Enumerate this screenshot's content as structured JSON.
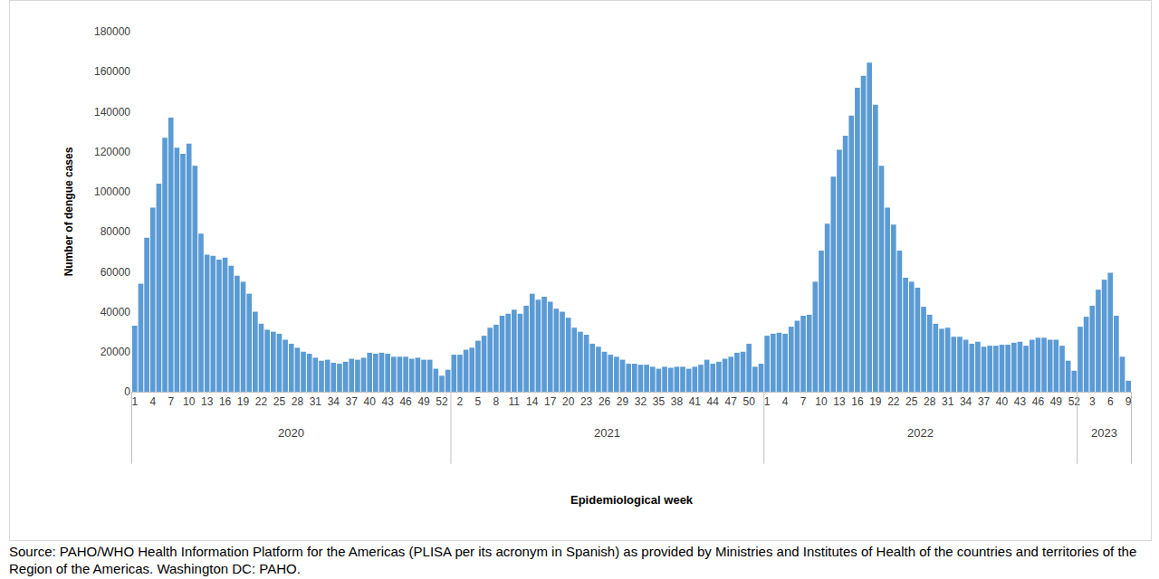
{
  "chart_data": {
    "type": "bar",
    "x_label": "Epidemiological week",
    "y_label": "Number of dengue cases",
    "note": "Source: PAHO/WHO Health Information Platform for the Americas (PLISA per its acronym in Spanish) as provided by Ministries and Institutes of Health of the countries and territories of the Region of the Americas. Washington DC: PAHO.",
    "color": "#5b9bd5",
    "grid": false,
    "ylim": [
      0,
      180000
    ],
    "yticks": [
      0,
      20000,
      40000,
      60000,
      80000,
      100000,
      120000,
      140000,
      160000,
      180000
    ],
    "groups": [
      {
        "label": "2020",
        "count": 53
      },
      {
        "label": "2021",
        "count": 52
      },
      {
        "label": "2022",
        "count": 52
      },
      {
        "label": "2023",
        "count": 9
      }
    ],
    "categories": [
      "1",
      null,
      null,
      "4",
      null,
      null,
      "7",
      null,
      null,
      "10",
      null,
      null,
      "13",
      null,
      null,
      "16",
      null,
      null,
      "19",
      null,
      null,
      "22",
      null,
      null,
      "25",
      null,
      null,
      "28",
      null,
      null,
      "31",
      null,
      null,
      "34",
      null,
      null,
      "37",
      null,
      null,
      "40",
      null,
      null,
      "43",
      null,
      null,
      "46",
      null,
      null,
      "49",
      null,
      null,
      "52",
      null,
      null,
      "2",
      null,
      null,
      "5",
      null,
      null,
      "8",
      null,
      null,
      "11",
      null,
      null,
      "14",
      null,
      null,
      "17",
      null,
      null,
      "20",
      null,
      null,
      "23",
      null,
      null,
      "26",
      null,
      null,
      "29",
      null,
      null,
      "32",
      null,
      null,
      "35",
      null,
      null,
      "38",
      null,
      null,
      "41",
      null,
      null,
      "44",
      null,
      null,
      "47",
      null,
      null,
      "50",
      null,
      null,
      "1",
      null,
      null,
      "4",
      null,
      null,
      "7",
      null,
      null,
      "10",
      null,
      null,
      "13",
      null,
      null,
      "16",
      null,
      null,
      "19",
      null,
      null,
      "22",
      null,
      null,
      "25",
      null,
      null,
      "28",
      null,
      null,
      "31",
      null,
      null,
      "34",
      null,
      null,
      "37",
      null,
      null,
      "40",
      null,
      null,
      "43",
      null,
      null,
      "46",
      null,
      null,
      "49",
      null,
      null,
      "52",
      null,
      null,
      "3",
      null,
      null,
      "6",
      null,
      null,
      "9"
    ],
    "values": [
      33000,
      54000,
      77000,
      92000,
      104000,
      127000,
      137000,
      122000,
      119000,
      124000,
      113000,
      79000,
      68500,
      68000,
      66000,
      67000,
      63000,
      58000,
      55000,
      49000,
      40000,
      34000,
      31000,
      30000,
      29000,
      26000,
      24000,
      22000,
      20000,
      19000,
      17000,
      15500,
      16000,
      14500,
      14000,
      15000,
      16500,
      16000,
      17000,
      19500,
      19000,
      19500,
      19000,
      17500,
      17500,
      17500,
      16500,
      17000,
      16000,
      16000,
      11500,
      8000,
      11000,
      18500,
      18500,
      21000,
      22000,
      25500,
      28000,
      32000,
      33500,
      38000,
      39000,
      41000,
      39000,
      43000,
      49000,
      46000,
      47500,
      45000,
      41500,
      40000,
      37000,
      32000,
      30000,
      28500,
      24000,
      22500,
      20000,
      18500,
      17500,
      16000,
      14000,
      14000,
      13500,
      13500,
      12500,
      11500,
      12500,
      12000,
      12500,
      12500,
      11500,
      12500,
      13500,
      16000,
      14000,
      15000,
      16500,
      17500,
      19500,
      20000,
      24000,
      12500,
      14000,
      28000,
      29000,
      29500,
      29000,
      32500,
      35500,
      38000,
      38500,
      55000,
      70500,
      84000,
      107500,
      121000,
      128000,
      138000,
      152000,
      158000,
      164500,
      143500,
      113000,
      92000,
      83500,
      70500,
      57000,
      55000,
      52000,
      42500,
      38500,
      34000,
      31500,
      32000,
      27500,
      27500,
      26000,
      24000,
      25000,
      22500,
      23000,
      23000,
      23500,
      23500,
      24500,
      25000,
      23000,
      26000,
      27000,
      27000,
      26000,
      26000,
      23000,
      15500,
      10500,
      32500,
      37500,
      43000,
      51000,
      56000,
      59500,
      38000,
      17500,
      5500
    ]
  }
}
